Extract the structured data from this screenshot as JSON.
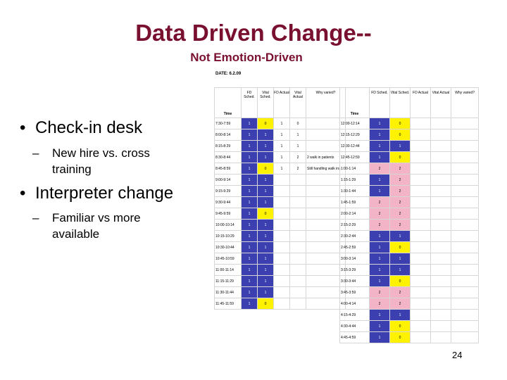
{
  "slide": {
    "title": "Data Driven Change--",
    "subtitle": "Not Emotion-Driven",
    "bullet1": "Check-in desk",
    "sub1_line1": "New hire vs. cross",
    "sub1_line2": "training",
    "bullet2": "Interpreter change",
    "sub2_line1": "Familiar vs more",
    "sub2_line2": "available",
    "bullet_glyph": "•",
    "dash_glyph": "–",
    "page_number": "24"
  },
  "sheet": {
    "date_label": "DATE: 6.2.09",
    "left": {
      "headers": [
        "Time",
        "FD Sched.",
        "Vital Sched.",
        "FD Actual",
        "Vital Actual",
        "Why varied?"
      ],
      "rows": [
        {
          "time": "7:30-7:59",
          "c": [
            "1",
            "0",
            "1",
            "0"
          ],
          "note": ""
        },
        {
          "time": "8:00-8:14",
          "c": [
            "1",
            "1",
            "1",
            "1"
          ],
          "note": ""
        },
        {
          "time": "8:15-8:29",
          "c": [
            "1",
            "1",
            "1",
            "1"
          ],
          "note": ""
        },
        {
          "time": "8:30-8:44",
          "c": [
            "1",
            "1",
            "1",
            "2"
          ],
          "note": "2 walk in patients"
        },
        {
          "time": "8:45-8:59",
          "c": [
            "1",
            "0",
            "1",
            "2"
          ],
          "note": "Still handling walk ins"
        },
        {
          "time": "9:00-9:14",
          "c": [
            "1",
            "1",
            "",
            ""
          ],
          "note": ""
        },
        {
          "time": "9:15-9:29",
          "c": [
            "1",
            "1",
            "",
            ""
          ],
          "note": ""
        },
        {
          "time": "9:30-9:44",
          "c": [
            "1",
            "1",
            "",
            ""
          ],
          "note": ""
        },
        {
          "time": "9:45-9:59",
          "c": [
            "1",
            "0",
            "",
            ""
          ],
          "note": ""
        },
        {
          "time": "10:00-10:14",
          "c": [
            "1",
            "1",
            "",
            ""
          ],
          "note": ""
        },
        {
          "time": "10:15-10:29",
          "c": [
            "1",
            "1",
            "",
            ""
          ],
          "note": ""
        },
        {
          "time": "10:30-10:44",
          "c": [
            "1",
            "1",
            "",
            ""
          ],
          "note": ""
        },
        {
          "time": "10:45-10:59",
          "c": [
            "1",
            "1",
            "",
            ""
          ],
          "note": ""
        },
        {
          "time": "11:00-11:14",
          "c": [
            "1",
            "1",
            "",
            ""
          ],
          "note": ""
        },
        {
          "time": "11:15-11:29",
          "c": [
            "1",
            "1",
            "",
            ""
          ],
          "note": ""
        },
        {
          "time": "11:30-11:44",
          "c": [
            "1",
            "1",
            "",
            ""
          ],
          "note": ""
        },
        {
          "time": "11:45-11:59",
          "c": [
            "1",
            "0",
            "",
            ""
          ],
          "note": ""
        }
      ]
    },
    "right": {
      "headers": [
        "Time",
        "FD Sched.",
        "Vital Sched.",
        "FD Actual",
        "Vital Actual",
        "Why varied?"
      ],
      "rows": [
        {
          "time": "12:00-12:14",
          "c": [
            "1",
            "0"
          ]
        },
        {
          "time": "12:15-12:29",
          "c": [
            "1",
            "0"
          ]
        },
        {
          "time": "12:30-12:44",
          "c": [
            "1",
            "1"
          ]
        },
        {
          "time": "12:45-12:59",
          "c": [
            "1",
            "0"
          ]
        },
        {
          "time": "1:00-1:14",
          "c": [
            "2",
            "2"
          ]
        },
        {
          "time": "1:15-1:29",
          "c": [
            "1",
            "2"
          ]
        },
        {
          "time": "1:30-1:44",
          "c": [
            "1",
            "2"
          ]
        },
        {
          "time": "1:45-1:59",
          "c": [
            "2",
            "2"
          ]
        },
        {
          "time": "2:00-2:14",
          "c": [
            "2",
            "2"
          ]
        },
        {
          "time": "2:15-2:29",
          "c": [
            "2",
            "2"
          ]
        },
        {
          "time": "2:30-2:44",
          "c": [
            "1",
            "1"
          ]
        },
        {
          "time": "2:45-2:59",
          "c": [
            "1",
            "0"
          ]
        },
        {
          "time": "3:00-3:14",
          "c": [
            "1",
            "1"
          ]
        },
        {
          "time": "3:15-3:29",
          "c": [
            "1",
            "1"
          ]
        },
        {
          "time": "3:30-3:44",
          "c": [
            "1",
            "0"
          ]
        },
        {
          "time": "3:45-3:59",
          "c": [
            "2",
            "2"
          ]
        },
        {
          "time": "4:00-4:14",
          "c": [
            "2",
            "2"
          ]
        },
        {
          "time": "4:15-4:29",
          "c": [
            "1",
            "1"
          ]
        },
        {
          "time": "4:30-4:44",
          "c": [
            "1",
            "0"
          ]
        },
        {
          "time": "4:45-4:59",
          "c": [
            "1",
            "0"
          ]
        }
      ]
    },
    "colors": {
      "scheduled_blue": "#3b3fb0",
      "vital_yellow": "#fff200",
      "double_pink": "#f4b4c8",
      "title_maroon": "#7a1030"
    }
  }
}
